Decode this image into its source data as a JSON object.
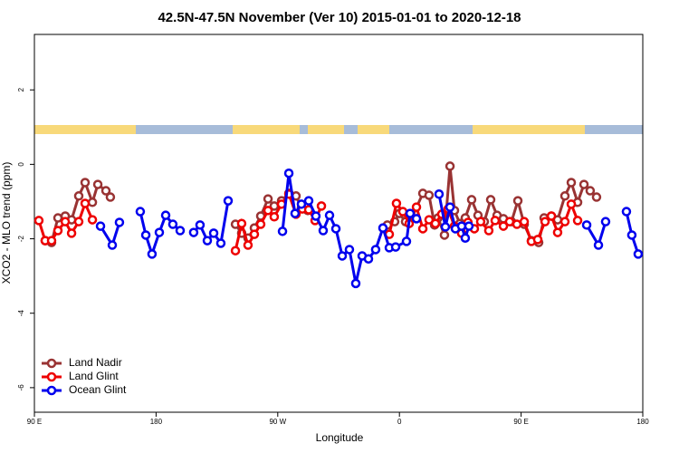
{
  "chart_data": {
    "type": "line",
    "title": "42.5N-47.5N November (Ver 10)   2015-01-01 to 2020-12-18",
    "x_label": "Longitude",
    "y_label": "XCO2 - MLO trend (ppm)",
    "xlim": [
      90,
      540
    ],
    "xticks": [
      {
        "value": 90,
        "label": "90 E"
      },
      180,
      {
        "value": 270,
        "label": "90 W"
      },
      {
        "value": 360,
        "label": "0"
      },
      {
        "value": 450,
        "label": "90 E"
      },
      {
        "value": 540,
        "label": "180"
      }
    ],
    "ylim": [
      -6.66,
      3.49
    ],
    "yticks": [
      2,
      0,
      -2,
      -4,
      -6
    ],
    "legend": "bottomleft",
    "series": [
      {
        "name": "Land Nadir",
        "color": "#993333",
        "x": [
          98.0,
          102.7,
          107.4,
          112.8,
          117.5,
          122.8,
          127.5,
          132.9,
          136.9,
          142.9,
          146.2,
          null,
          238.7,
          243.3,
          248.0,
          252.7,
          257.4,
          262.8,
          267.4,
          272.8,
          278.2,
          283.5,
          287.5,
          292.2,
          null,
          351.1,
          356.5,
          359.9,
          364.5,
          369.2,
          377.3,
          381.9,
          386.0,
          388.6,
          393.3,
          397.4,
          400.7,
          404.7,
          408.7,
          413.4,
          418.1,
          422.8,
          427.5,
          432.2,
          436.9,
          442.9,
          447.6,
          452.3,
          457.6,
          463.0,
          467.0,
          472.4,
          477.0,
          482.4,
          487.1,
          491.8,
          496.5,
          501.1,
          505.8
        ],
        "values": [
          -2.05,
          -2.1,
          -1.44,
          -1.39,
          -1.49,
          -0.85,
          -0.49,
          -1.02,
          -0.54,
          -0.71,
          -0.88,
          null,
          -1.61,
          -1.85,
          -1.98,
          -1.71,
          -1.39,
          -0.93,
          -1.12,
          -0.98,
          -0.78,
          -0.85,
          -1.17,
          -1.24,
          null,
          -1.63,
          -1.54,
          -1.32,
          -1.54,
          -1.44,
          -0.78,
          -0.83,
          -1.63,
          -1.44,
          -1.9,
          -0.05,
          -1.24,
          -1.59,
          -1.44,
          -0.95,
          -1.37,
          -1.54,
          -0.95,
          -1.37,
          -1.46,
          -1.54,
          -0.98,
          -1.61,
          -2.05,
          -2.1,
          -1.44,
          -1.39,
          -1.49,
          -0.85,
          -0.49,
          -1.02,
          -0.54,
          -0.71,
          -0.88
        ]
      },
      {
        "name": "Land Glint",
        "color": "#ee0000",
        "x": [
          93.3,
          98.0,
          102.7,
          107.4,
          112.8,
          117.5,
          122.8,
          127.5,
          132.9,
          null,
          238.7,
          243.3,
          248.0,
          252.7,
          257.4,
          262.8,
          267.4,
          272.8,
          278.2,
          283.5,
          288.2,
          292.9,
          297.6,
          302.3,
          null,
          352.5,
          357.8,
          362.5,
          367.2,
          372.6,
          377.3,
          381.9,
          386.6,
          391.3,
          396.0,
          400.7,
          406.0,
          410.7,
          415.4,
          420.1,
          426.1,
          430.8,
          436.9,
          441.5,
          446.9,
          452.3,
          457.6,
          462.3,
          467.7,
          472.4,
          477.0,
          482.4,
          487.1,
          491.8
        ],
        "values": [
          -1.51,
          -2.05,
          -2.05,
          -1.78,
          -1.54,
          -1.85,
          -1.54,
          -1.05,
          -1.49,
          null,
          -2.32,
          -1.59,
          -2.17,
          -1.88,
          -1.61,
          -1.24,
          -1.41,
          -1.07,
          -0.8,
          -1.34,
          -1.2,
          -1.22,
          -1.51,
          -1.12,
          null,
          -1.88,
          -1.05,
          -1.27,
          -1.59,
          -1.15,
          -1.73,
          -1.49,
          -1.59,
          -1.34,
          -1.2,
          -1.66,
          -1.85,
          -1.56,
          -1.73,
          -1.54,
          -1.78,
          -1.51,
          -1.66,
          -1.54,
          -1.61,
          -1.54,
          -2.07,
          -2.02,
          -1.54,
          -1.39,
          -1.83,
          -1.54,
          -1.07,
          -1.51
        ]
      },
      {
        "name": "Ocean Glint",
        "color": "#0000ee",
        "x": [
          138.9,
          147.6,
          152.9,
          null,
          168.3,
          172.4,
          177.0,
          182.4,
          187.1,
          192.4,
          197.8,
          null,
          207.8,
          212.5,
          217.9,
          222.6,
          227.9,
          233.3,
          null,
          273.5,
          278.2,
          282.8,
          287.5,
          292.9,
          298.2,
          303.6,
          308.3,
          313.0,
          317.7,
          323.0,
          327.7,
          332.4,
          337.1,
          342.4,
          347.8,
          352.5,
          357.2,
          365.2,
          367.9,
          372.6,
          null,
          389.3,
          394.0,
          397.4,
          401.4,
          406.0,
          408.7,
          411.4,
          null,
          498.5,
          507.2,
          512.5,
          null,
          527.9,
          531.9,
          536.6
        ],
        "values": [
          -1.66,
          -2.17,
          -1.56,
          null,
          -1.27,
          -1.9,
          -2.41,
          -1.83,
          -1.37,
          -1.61,
          -1.78,
          null,
          -1.83,
          -1.63,
          -2.05,
          -1.85,
          -2.12,
          -0.98,
          null,
          -1.8,
          -0.24,
          -1.32,
          -1.07,
          -0.98,
          -1.39,
          -1.78,
          -1.37,
          -1.73,
          -2.46,
          -2.29,
          -3.2,
          -2.46,
          -2.54,
          -2.29,
          -1.71,
          -2.24,
          -2.22,
          -2.07,
          -1.32,
          -1.46,
          null,
          -0.8,
          -1.68,
          -1.15,
          -1.73,
          -1.66,
          -1.98,
          -1.66,
          null,
          -1.63,
          -2.17,
          -1.54,
          null,
          -1.27,
          -1.9,
          -2.41
        ]
      }
    ]
  }
}
